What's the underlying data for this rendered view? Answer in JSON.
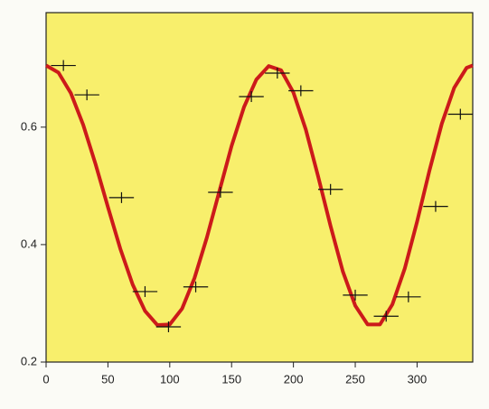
{
  "chart_data": {
    "type": "scatter",
    "x": [
      14,
      33,
      61,
      80,
      99,
      121,
      141,
      166,
      187,
      206,
      230,
      250,
      275,
      293,
      315,
      335
    ],
    "values": [
      0.705,
      0.655,
      0.48,
      0.32,
      0.26,
      0.328,
      0.489,
      0.652,
      0.692,
      0.662,
      0.494,
      0.314,
      0.278,
      0.311,
      0.465,
      0.622
    ],
    "xerr": [
      10,
      10,
      10,
      10,
      10,
      10,
      10,
      10,
      10,
      10,
      10,
      10,
      10,
      10,
      10,
      10
    ],
    "color": "#111111",
    "fit": {
      "type": "line",
      "color": "#cc1a1a",
      "x": [
        0,
        10,
        20,
        30,
        40,
        50,
        60,
        70,
        80,
        90,
        100,
        110,
        120,
        130,
        140,
        150,
        160,
        170,
        180,
        190,
        200,
        210,
        220,
        230,
        240,
        250,
        260,
        270,
        280,
        290,
        300,
        310,
        320,
        330,
        340,
        345
      ],
      "values": [
        0.705,
        0.693,
        0.658,
        0.604,
        0.537,
        0.464,
        0.393,
        0.332,
        0.287,
        0.263,
        0.264,
        0.291,
        0.343,
        0.412,
        0.49,
        0.568,
        0.634,
        0.681,
        0.704,
        0.697,
        0.659,
        0.596,
        0.516,
        0.432,
        0.354,
        0.296,
        0.264,
        0.264,
        0.298,
        0.359,
        0.439,
        0.526,
        0.606,
        0.667,
        0.701,
        0.705
      ]
    },
    "xlim": [
      0,
      345
    ],
    "xticks": [
      0,
      50,
      100,
      150,
      200,
      250,
      300
    ],
    "ylim": [
      0.2,
      0.795
    ],
    "yticks": [
      0.2,
      0.4,
      0.6
    ],
    "background": "#f8ef6c"
  }
}
